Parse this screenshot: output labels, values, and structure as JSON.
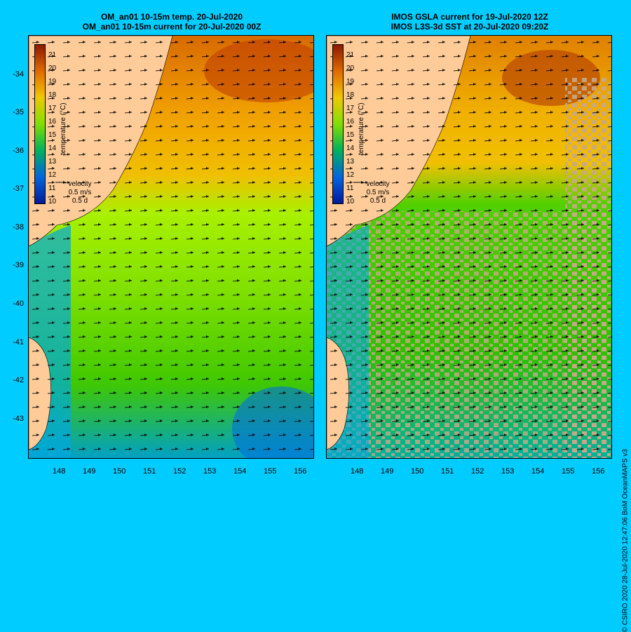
{
  "left_panel": {
    "title_line1": "OM_an01 10-15m temp. 20-Jul-2020",
    "title_line2": "OM_an01 10-15m current for 20-Jul-2020 00Z"
  },
  "right_panel": {
    "title_line1": "IMOS GSLA current for 19-Jul-2020 12Z",
    "title_line2": "IMOS L3S-3d SST at 20-Jul-2020 09:20Z"
  },
  "map_data": {
    "lon_ticks": [
      "148",
      "149",
      "150",
      "151",
      "152",
      "153",
      "154",
      "155",
      "156"
    ],
    "lat_ticks": [
      "-34",
      "-35",
      "-36",
      "-37",
      "-38",
      "-39",
      "-40",
      "-41",
      "-42",
      "-43"
    ],
    "colorbar": {
      "title": "temperature (°C)",
      "labels": [
        "21",
        "20",
        "19",
        "18",
        "17",
        "16",
        "15",
        "14",
        "13",
        "12",
        "11",
        "10"
      ],
      "colors": [
        "#8b1a00",
        "#c03a00",
        "#e06a00",
        "#f09a00",
        "#f0c800",
        "#c8f000",
        "#7ee000",
        "#30c800",
        "#00b060",
        "#00a0c0",
        "#0066dd",
        "#001a99"
      ]
    },
    "velocity_legend": {
      "label": "velocity",
      "speed": "0.5 m/s",
      "duration": "0.5 d"
    }
  },
  "credit": "© CSIRO 2020   28-Jul-2020 12:47:06 BoM OceanMAPS v3"
}
